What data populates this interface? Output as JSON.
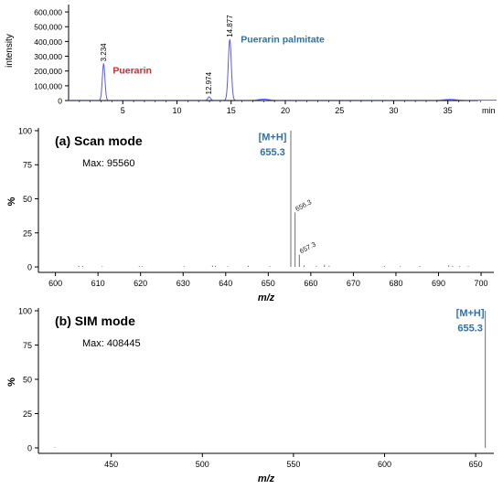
{
  "colors": {
    "chromatogram": "#5a5af0",
    "spectrum": "#6e6e6e",
    "axis": "#000000",
    "puerarin_label": "#e8202a",
    "palmitate_label": "#2a72b6",
    "ion_label": "#2a72b6"
  },
  "chart_data": [
    {
      "id": "chromatogram",
      "type": "line",
      "title": "",
      "xlabel": "min",
      "ylabel": "intensity",
      "xlim": [
        0,
        39.5
      ],
      "ylim": [
        0,
        650000
      ],
      "x_ticks": [
        5,
        10,
        15,
        20,
        25,
        30,
        35
      ],
      "y_ticks": [
        0,
        100000,
        200000,
        300000,
        400000,
        500000,
        600000
      ],
      "y_tick_labels": [
        "0",
        "100,000",
        "200,000",
        "300,000",
        "400,000",
        "500,000",
        "600,000"
      ],
      "peaks": [
        {
          "rt": 3.234,
          "rt_label": "3.234",
          "height": 245000,
          "width": 0.12
        },
        {
          "rt": 12.974,
          "rt_label": "12.974",
          "height": 22000,
          "width": 0.12
        },
        {
          "rt": 14.877,
          "rt_label": "14.877",
          "height": 410000,
          "width": 0.14
        },
        {
          "rt": 18.0,
          "rt_label": "",
          "height": 7000,
          "width": 0.4
        },
        {
          "rt": 35.2,
          "rt_label": "",
          "height": 5000,
          "width": 0.5
        }
      ],
      "annotations": [
        {
          "text": "Puerarin",
          "x": 3.234,
          "y": 330000,
          "color_key": "puerarin_label"
        },
        {
          "text": "Puerarin palmitate",
          "x": 14.877,
          "y": 510000,
          "color_key": "palmitate_label"
        }
      ]
    },
    {
      "id": "scan",
      "type": "bar",
      "title": "(a) Scan mode",
      "subtitle": "Max: 95560",
      "xlabel": "m/z",
      "ylabel": "%",
      "xlim": [
        596,
        703
      ],
      "ylim": [
        -4,
        102
      ],
      "x_ticks": [
        600,
        610,
        620,
        630,
        640,
        650,
        660,
        670,
        680,
        690,
        700
      ],
      "y_ticks": [
        0,
        25,
        50,
        75,
        100
      ],
      "peaks": [
        {
          "mz": 655.3,
          "rel": 100,
          "label": ""
        },
        {
          "mz": 656.3,
          "rel": 40,
          "label": "656.3"
        },
        {
          "mz": 657.3,
          "rel": 9,
          "label": "657.3"
        },
        {
          "mz": 605.5,
          "rel": 0.8,
          "label": ""
        },
        {
          "mz": 606.4,
          "rel": 0.6,
          "label": ""
        },
        {
          "mz": 611.0,
          "rel": 0.5,
          "label": ""
        },
        {
          "mz": 619.7,
          "rel": 0.6,
          "label": ""
        },
        {
          "mz": 620.4,
          "rel": 0.5,
          "label": ""
        },
        {
          "mz": 630.2,
          "rel": 0.5,
          "label": ""
        },
        {
          "mz": 636.9,
          "rel": 1.0,
          "label": ""
        },
        {
          "mz": 637.6,
          "rel": 0.7,
          "label": ""
        },
        {
          "mz": 640.5,
          "rel": 0.5,
          "label": ""
        },
        {
          "mz": 645.3,
          "rel": 0.8,
          "label": ""
        },
        {
          "mz": 650.4,
          "rel": 0.5,
          "label": ""
        },
        {
          "mz": 658.4,
          "rel": 1.2,
          "label": ""
        },
        {
          "mz": 661.3,
          "rel": 0.6,
          "label": ""
        },
        {
          "mz": 663.2,
          "rel": 1.5,
          "label": ""
        },
        {
          "mz": 664.3,
          "rel": 0.8,
          "label": ""
        },
        {
          "mz": 677.3,
          "rel": 0.6,
          "label": ""
        },
        {
          "mz": 681.0,
          "rel": 0.5,
          "label": ""
        },
        {
          "mz": 685.6,
          "rel": 0.7,
          "label": ""
        },
        {
          "mz": 692.4,
          "rel": 1.2,
          "label": ""
        },
        {
          "mz": 693.3,
          "rel": 0.8,
          "label": ""
        },
        {
          "mz": 695.0,
          "rel": 0.6,
          "label": ""
        },
        {
          "mz": 697.0,
          "rel": 0.5,
          "label": ""
        }
      ],
      "annotations": [
        {
          "text": "[M+H]",
          "x": 655.3,
          "y": 93
        },
        {
          "text": "655.3",
          "x": 655.3,
          "y": 82
        }
      ]
    },
    {
      "id": "sim",
      "type": "bar",
      "title": "(b) SIM mode",
      "subtitle": "Max: 408445",
      "xlabel": "m/z",
      "ylabel": "%",
      "xlim": [
        410,
        660
      ],
      "ylim": [
        -4,
        102
      ],
      "x_ticks": [
        450,
        500,
        550,
        600,
        650
      ],
      "y_ticks": [
        0,
        25,
        50,
        75,
        100
      ],
      "peaks": [
        {
          "mz": 655.3,
          "rel": 100,
          "label": ""
        },
        {
          "mz": 419.0,
          "rel": 0.4,
          "label": ""
        }
      ],
      "annotations": [
        {
          "text": "[M+H]",
          "x": 647,
          "y": 96
        },
        {
          "text": "655.3",
          "x": 647,
          "y": 85
        }
      ]
    }
  ]
}
